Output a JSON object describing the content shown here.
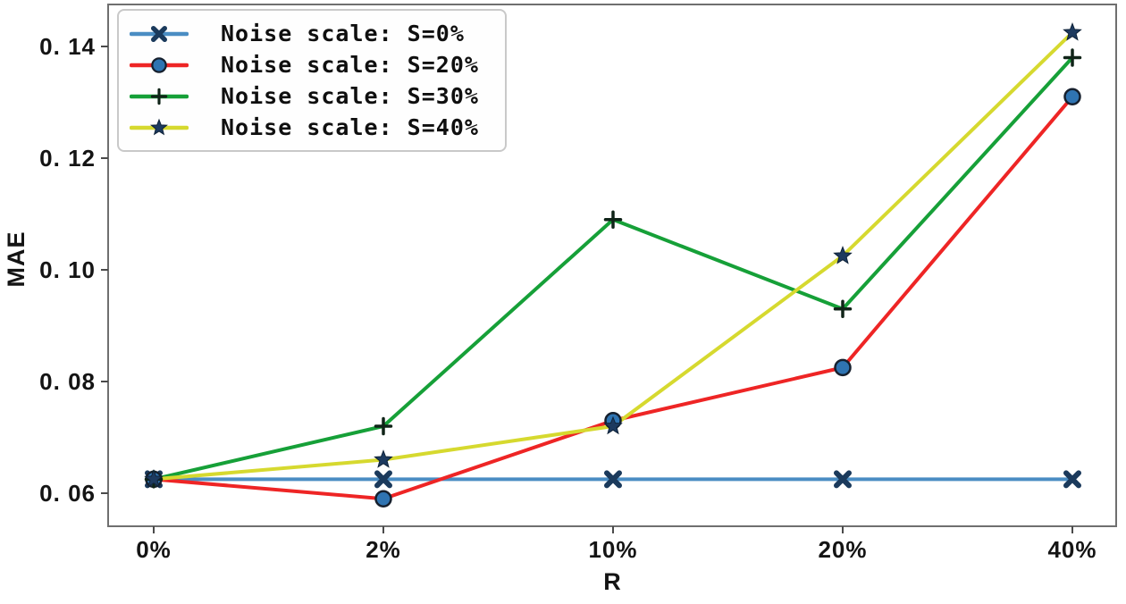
{
  "chart_data": {
    "type": "line",
    "title": "",
    "xlabel": "R",
    "ylabel": "MAE",
    "categories": [
      "0%",
      "2%",
      "10%",
      "20%",
      "40%"
    ],
    "y_tick_values": [
      0.06,
      0.08,
      0.1,
      0.12,
      0.14
    ],
    "y_tick_labels": [
      "0. 06",
      "0. 08",
      "0. 10",
      "0. 12",
      "0. 14"
    ],
    "ylim": [
      0.054,
      0.1475
    ],
    "grid": false,
    "legend_position": "upper-left",
    "series": [
      {
        "name": "Noise scale: S=0%",
        "line_color": "#4a8dc3",
        "marker": "x-cross",
        "marker_color": "#1b3a5c",
        "values": [
          0.0625,
          0.0625,
          0.0625,
          0.0625,
          0.0625
        ]
      },
      {
        "name": "Noise scale: S=20%",
        "line_color": "#ee2525",
        "marker": "circle",
        "marker_color": "#2f74b2",
        "values": [
          0.0625,
          0.059,
          0.073,
          0.0825,
          0.131
        ]
      },
      {
        "name": "Noise scale: S=30%",
        "line_color": "#16a038",
        "marker": "plus",
        "marker_color": "#102418",
        "values": [
          0.0625,
          0.072,
          0.109,
          0.093,
          0.138
        ]
      },
      {
        "name": "Noise scale: S=40%",
        "line_color": "#d6d92f",
        "marker": "star",
        "marker_color": "#1d3a5f",
        "values": [
          0.0625,
          0.066,
          0.072,
          0.1025,
          0.1425
        ]
      }
    ],
    "frame_color": "#6f6f6f",
    "tick_color": "#4a4a4a"
  }
}
